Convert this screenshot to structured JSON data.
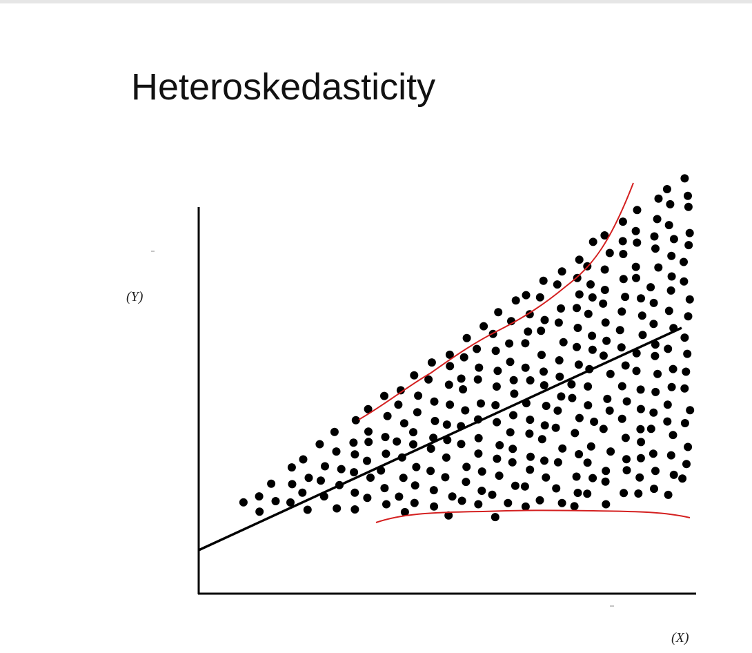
{
  "title": "Heteroskedasticity",
  "y_label": "(Y)",
  "x_label": "(X)"
}
